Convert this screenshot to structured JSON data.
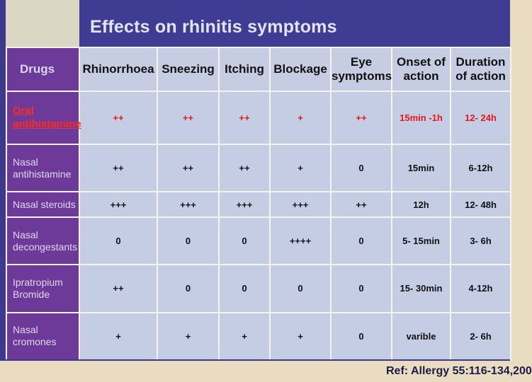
{
  "title": "Effects on rhinitis symptoms",
  "headers": [
    "Drugs",
    "Rhinorrhoea",
    "Sneezing",
    "Itching",
    "Blockage",
    "Eye symptoms",
    "Onset of action",
    "Duration of action"
  ],
  "rows": [
    {
      "drug_line1": "Oral",
      "drug_line2": "antihistamine",
      "cells": [
        "++",
        "++",
        "++",
        "+",
        "++",
        "15min -1h",
        "12- 24h"
      ]
    },
    {
      "drug_line1": "Nasal",
      "drug_line2": "antihistamine",
      "cells": [
        "++",
        "++",
        "++",
        "+",
        "0",
        "15min",
        "6-12h"
      ]
    },
    {
      "drug_line1": "Nasal steroids",
      "drug_line2": "",
      "cells": [
        "+++",
        "+++",
        "+++",
        "+++",
        "++",
        "12h",
        "12- 48h"
      ]
    },
    {
      "drug_line1": "Nasal",
      "drug_line2": "decongestants",
      "cells": [
        "0",
        "0",
        "0",
        "++++",
        "0",
        "5- 15min",
        "3- 6h"
      ]
    },
    {
      "drug_line1": "Ipratropium",
      "drug_line2": "Bromide",
      "cells": [
        "++",
        "0",
        "0",
        "0",
        "0",
        "15- 30min",
        "4-12h"
      ]
    },
    {
      "drug_line1": "Nasal",
      "drug_line2": "cromones",
      "cells": [
        "+",
        "+",
        "+",
        "+",
        "0",
        "varible",
        "2- 6h"
      ]
    }
  ],
  "reference": "Ref: Allergy 55:116-134,200",
  "colors": {
    "title_bar": "#3f3c93",
    "drug_column": "#6e3a9a",
    "cell_background": "#c5cde4",
    "highlight_text": "#e41818"
  }
}
